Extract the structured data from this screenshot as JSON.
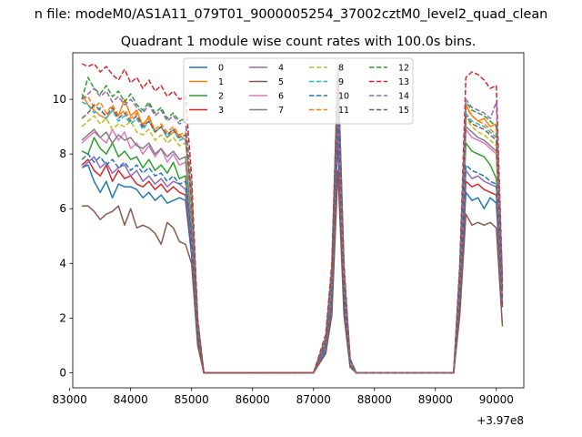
{
  "chart_data": {
    "type": "line",
    "suptitle": "n file: modeM0/AS1A11_079T01_9000005254_37002cztM0_level2_quad_clean",
    "title": "Quadrant 1 module wise count rates with 100.0s bins.",
    "xlabel": "",
    "ylabel": "",
    "x_offset_label": "+3.97e8",
    "xlim": [
      83050,
      90450
    ],
    "ylim": [
      -0.55,
      11.7
    ],
    "x_ticks": [
      83000,
      84000,
      85000,
      86000,
      87000,
      88000,
      89000,
      90000
    ],
    "x_tick_labels": [
      "83000",
      "84000",
      "85000",
      "86000",
      "87000",
      "88000",
      "89000",
      "90000"
    ],
    "y_ticks": [
      0,
      2,
      4,
      6,
      8,
      10
    ],
    "y_tick_labels": [
      "0",
      "2",
      "4",
      "6",
      "8",
      "10"
    ],
    "grid": false,
    "legend": {
      "placement": "top-center",
      "columns": 4
    },
    "x": [
      83200,
      83300,
      83400,
      83500,
      83600,
      83700,
      83800,
      83900,
      84000,
      84100,
      84200,
      84300,
      84400,
      84500,
      84600,
      84700,
      84800,
      84900,
      85000,
      85100,
      85200,
      85300,
      86000,
      87000,
      87200,
      87300,
      87400,
      87500,
      87600,
      87700,
      88500,
      89300,
      89400,
      89500,
      89600,
      89700,
      89800,
      89900,
      90000,
      90100
    ],
    "series": [
      {
        "name": "0",
        "color": "#1f77b4",
        "dash": "solid",
        "values": [
          7.5,
          7.6,
          7.0,
          6.6,
          7.0,
          6.4,
          6.9,
          6.8,
          6.8,
          6.7,
          6.4,
          6.6,
          6.3,
          6.5,
          6.2,
          6.3,
          6.4,
          6.3,
          4.3,
          1.2,
          0,
          0,
          0,
          0,
          0.8,
          2.5,
          8.5,
          2.5,
          0.3,
          0,
          0,
          0,
          2.5,
          6.6,
          6.3,
          6.4,
          6.0,
          6.4,
          6.2,
          2.4
        ]
      },
      {
        "name": "1",
        "color": "#ff7f0e",
        "dash": "solid",
        "values": [
          10.2,
          9.8,
          9.6,
          9.4,
          9.3,
          9.6,
          9.4,
          10.0,
          9.4,
          9.6,
          9.0,
          9.4,
          8.8,
          9.0,
          8.6,
          8.8,
          8.7,
          8.5,
          6.4,
          1.8,
          0,
          0,
          0,
          0,
          1.2,
          3.6,
          11.1,
          3.6,
          0.5,
          0,
          0,
          0,
          3.6,
          9.8,
          9.4,
          9.2,
          9.3,
          9.0,
          9.1,
          3.0
        ]
      },
      {
        "name": "2",
        "color": "#2ca02c",
        "dash": "solid",
        "values": [
          8.1,
          8.0,
          8.6,
          8.2,
          8.0,
          8.4,
          7.9,
          8.1,
          7.8,
          7.9,
          7.5,
          7.8,
          7.4,
          7.6,
          7.3,
          7.7,
          7.1,
          7.2,
          5.1,
          1.5,
          0,
          0,
          0,
          0,
          1.0,
          3.0,
          9.6,
          3.0,
          0.4,
          0,
          0,
          0,
          3.0,
          8.4,
          8.1,
          8.0,
          7.9,
          7.6,
          7.1,
          2.8
        ]
      },
      {
        "name": "3",
        "color": "#d62728",
        "dash": "solid",
        "values": [
          7.6,
          7.8,
          7.4,
          7.2,
          7.6,
          7.0,
          7.4,
          7.1,
          7.2,
          6.9,
          6.8,
          7.0,
          6.7,
          6.9,
          6.6,
          6.8,
          6.6,
          6.5,
          4.6,
          1.3,
          0,
          0,
          0,
          0,
          0.9,
          2.7,
          8.9,
          2.7,
          0.3,
          0,
          0,
          0,
          2.7,
          7.0,
          6.8,
          6.9,
          6.7,
          6.6,
          6.5,
          2.5
        ]
      },
      {
        "name": "4",
        "color": "#9467bd",
        "dash": "solid",
        "values": [
          7.5,
          7.7,
          7.9,
          7.5,
          7.7,
          7.3,
          7.5,
          7.6,
          7.2,
          7.4,
          7.0,
          7.2,
          6.9,
          7.1,
          6.8,
          7.0,
          6.9,
          6.7,
          4.8,
          1.4,
          0,
          0,
          0,
          0,
          0.9,
          2.8,
          9.2,
          2.8,
          0.3,
          0,
          0,
          0,
          2.8,
          7.4,
          7.1,
          7.2,
          7.0,
          6.9,
          6.8,
          2.6
        ]
      },
      {
        "name": "5",
        "color": "#8c564b",
        "dash": "solid",
        "values": [
          6.1,
          6.1,
          5.9,
          5.6,
          5.8,
          5.9,
          6.1,
          5.4,
          6.0,
          5.3,
          5.4,
          5.3,
          5.1,
          4.7,
          5.5,
          5.3,
          4.8,
          4.7,
          4.0,
          1.0,
          0,
          0,
          0,
          0,
          0.7,
          2.1,
          7.4,
          2.1,
          0.2,
          0,
          0,
          0,
          2.1,
          5.8,
          5.4,
          5.5,
          5.4,
          5.5,
          5.3,
          1.7
        ]
      },
      {
        "name": "6",
        "color": "#e377c2",
        "dash": "solid",
        "values": [
          8.4,
          8.6,
          8.8,
          8.6,
          8.4,
          8.9,
          8.5,
          8.8,
          8.2,
          8.4,
          8.0,
          8.3,
          7.9,
          8.2,
          7.7,
          8.0,
          7.6,
          7.7,
          5.5,
          1.6,
          0,
          0,
          0,
          0,
          1.1,
          3.2,
          10.3,
          3.2,
          0.4,
          0,
          0,
          0,
          3.2,
          8.9,
          8.6,
          8.5,
          8.4,
          8.2,
          8.0,
          2.9
        ]
      },
      {
        "name": "7",
        "color": "#7f7f7f",
        "dash": "solid",
        "values": [
          8.5,
          8.7,
          8.9,
          8.6,
          8.8,
          8.4,
          8.7,
          8.5,
          8.6,
          8.3,
          8.2,
          8.4,
          8.0,
          8.2,
          7.9,
          8.1,
          7.8,
          7.9,
          5.6,
          1.6,
          0,
          0,
          0,
          0,
          1.1,
          3.3,
          10.4,
          3.3,
          0.4,
          0,
          0,
          0,
          3.3,
          9.0,
          8.8,
          8.6,
          8.5,
          8.3,
          8.1,
          3.0
        ]
      },
      {
        "name": "8",
        "color": "#bcbd22",
        "dash": "dashed",
        "values": [
          9.0,
          9.2,
          9.4,
          9.1,
          9.3,
          8.9,
          9.1,
          9.0,
          9.2,
          8.8,
          8.7,
          8.9,
          8.5,
          8.7,
          8.4,
          8.6,
          8.3,
          8.4,
          6.0,
          1.7,
          0,
          0,
          0,
          0,
          1.2,
          3.5,
          10.8,
          3.5,
          0.4,
          0,
          0,
          0,
          3.5,
          9.3,
          9.0,
          8.8,
          8.7,
          8.5,
          8.3,
          3.1
        ]
      },
      {
        "name": "9",
        "color": "#17becf",
        "dash": "dashed",
        "values": [
          9.9,
          9.8,
          9.5,
          9.7,
          9.3,
          9.6,
          9.2,
          9.4,
          9.1,
          9.3,
          8.9,
          9.2,
          8.8,
          9.0,
          8.6,
          8.9,
          8.5,
          8.6,
          6.2,
          1.8,
          0,
          0,
          0,
          0,
          1.2,
          3.6,
          11.0,
          3.6,
          0.5,
          0,
          0,
          0,
          3.6,
          9.5,
          9.2,
          9.1,
          9.0,
          8.8,
          8.6,
          3.2
        ]
      },
      {
        "name": "10",
        "color": "#1f77b4",
        "dash": "dashed",
        "values": [
          7.8,
          8.0,
          7.7,
          7.9,
          7.6,
          7.8,
          7.5,
          7.7,
          7.4,
          7.6,
          7.3,
          7.5,
          7.2,
          7.3,
          7.0,
          7.2,
          6.9,
          7.0,
          5.0,
          1.4,
          0,
          0,
          0,
          0,
          1.0,
          2.9,
          9.5,
          2.9,
          0.3,
          0,
          0,
          0,
          2.9,
          7.6,
          7.4,
          7.3,
          7.2,
          7.0,
          6.9,
          2.7
        ]
      },
      {
        "name": "11",
        "color": "#ff7f0e",
        "dash": "dashed",
        "values": [
          10.0,
          10.1,
          9.7,
          9.9,
          9.5,
          9.8,
          9.4,
          9.6,
          9.3,
          9.5,
          9.1,
          9.3,
          8.9,
          9.1,
          8.8,
          9.0,
          8.7,
          8.8,
          6.3,
          1.8,
          0,
          0,
          0,
          0,
          1.2,
          3.6,
          11.1,
          3.6,
          0.5,
          0,
          0,
          0,
          3.6,
          9.7,
          9.4,
          9.2,
          9.1,
          8.9,
          8.7,
          3.2
        ]
      },
      {
        "name": "12",
        "color": "#2ca02c",
        "dash": "dashed",
        "values": [
          10.0,
          10.8,
          10.4,
          10.2,
          10.5,
          10.1,
          10.3,
          9.9,
          10.2,
          9.8,
          9.6,
          9.9,
          9.5,
          9.7,
          9.3,
          9.5,
          9.2,
          9.3,
          6.7,
          1.9,
          0,
          0,
          0,
          0,
          1.3,
          3.8,
          11.2,
          3.8,
          0.5,
          0,
          0,
          0,
          3.8,
          9.9,
          9.6,
          9.5,
          9.4,
          9.2,
          9.0,
          3.3
        ]
      },
      {
        "name": "13",
        "color": "#d62728",
        "dash": "dashed",
        "values": [
          11.3,
          11.2,
          11.3,
          11.0,
          11.2,
          10.9,
          10.7,
          11.1,
          10.6,
          10.8,
          10.4,
          10.7,
          10.3,
          10.5,
          10.1,
          10.3,
          10.0,
          10.1,
          7.2,
          2.0,
          0,
          0,
          0,
          0,
          1.4,
          4.0,
          11.2,
          4.0,
          0.5,
          0,
          0,
          0,
          4.0,
          10.8,
          11.0,
          10.9,
          10.7,
          10.4,
          10.5,
          3.4
        ]
      },
      {
        "name": "14",
        "color": "#9467bd",
        "dash": "dashed",
        "values": [
          10.0,
          10.2,
          10.4,
          10.1,
          10.3,
          9.9,
          10.1,
          9.8,
          10.0,
          9.7,
          9.5,
          9.8,
          9.4,
          9.6,
          9.2,
          9.4,
          9.1,
          9.2,
          6.6,
          1.9,
          0,
          0,
          0,
          0,
          1.3,
          3.8,
          11.2,
          3.8,
          0.5,
          0,
          0,
          0,
          3.8,
          10.0,
          9.7,
          9.6,
          9.5,
          9.3,
          9.9,
          3.3
        ]
      },
      {
        "name": "15",
        "color": "#8c564b",
        "dash": "dashed",
        "values": [
          9.3,
          9.5,
          9.8,
          9.6,
          9.4,
          9.7,
          9.3,
          9.5,
          9.2,
          9.4,
          9.0,
          9.2,
          8.8,
          9.0,
          8.7,
          8.9,
          8.6,
          8.7,
          6.2,
          1.8,
          0,
          0,
          0,
          0,
          1.2,
          3.6,
          11.0,
          3.6,
          0.5,
          0,
          0,
          0,
          3.6,
          9.4,
          9.1,
          9.0,
          8.9,
          8.7,
          8.5,
          3.1
        ]
      }
    ]
  }
}
